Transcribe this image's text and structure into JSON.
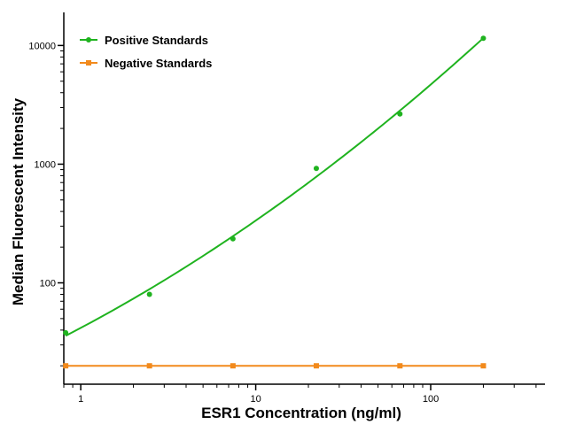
{
  "chart_data": {
    "type": "scatter",
    "xlabel": "ESR1 Concentration (ng/ml)",
    "ylabel": "Median Fluorescent Intensity",
    "xscale": "log",
    "yscale": "log",
    "xlim": [
      0.8,
      450
    ],
    "ylim": [
      14,
      19000
    ],
    "xticks": [
      1,
      10,
      100
    ],
    "xtick_labels": [
      "1",
      "10",
      "100"
    ],
    "yticks": [
      100,
      1000,
      10000
    ],
    "ytick_labels": [
      "100",
      "1000",
      "10000"
    ],
    "grid": false,
    "legend_position": "top-left",
    "series": [
      {
        "name": "Positive Standards",
        "color": "#1fb31f",
        "marker": "circle",
        "x": [
          0.82,
          2.47,
          7.41,
          22.2,
          66.7,
          200
        ],
        "y": [
          38,
          80,
          235,
          920,
          2650,
          11500
        ],
        "fit_curve": true
      },
      {
        "name": "Negative Standards",
        "color": "#f28a1c",
        "marker": "square",
        "x": [
          0.82,
          2.47,
          7.41,
          22.2,
          66.7,
          200
        ],
        "y": [
          20,
          20,
          20,
          20,
          20,
          20
        ],
        "fit_curve": false
      }
    ]
  }
}
